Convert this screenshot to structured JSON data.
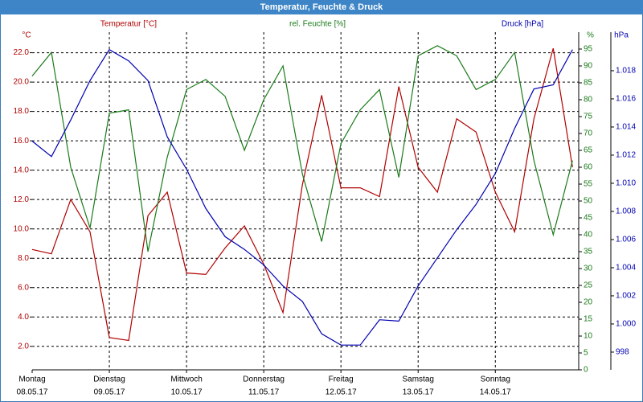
{
  "chart_data": {
    "type": "line",
    "title": "Temperatur, Feuchte & Druck",
    "categories": [
      "Montag",
      "Dienstag",
      "Mittwoch",
      "Donnerstag",
      "Freitag",
      "Samstag",
      "Sonntag"
    ],
    "dates": [
      "08.05.17",
      "09.05.17",
      "10.05.17",
      "11.05.17",
      "12.05.17",
      "13.05.17",
      "14.05.17"
    ],
    "x": [
      0,
      0.25,
      0.5,
      0.75,
      1,
      1.25,
      1.5,
      1.75,
      2,
      2.25,
      2.5,
      2.75,
      3,
      3.25,
      3.5,
      3.75,
      4,
      4.25,
      4.5,
      4.75,
      5,
      5.25,
      5.5,
      5.75,
      6,
      6.25,
      6.5,
      6.75,
      7
    ],
    "xlim": [
      0,
      7.08
    ],
    "ylabel": "°C",
    "y2label": "%",
    "y3label": "hPa",
    "ylim": [
      0.4,
      23.4
    ],
    "yticks": [
      {
        "value": 2,
        "label": "2.0"
      },
      {
        "value": 4,
        "label": "4.0"
      },
      {
        "value": 6,
        "label": "6.0"
      },
      {
        "value": 8,
        "label": "8.0"
      },
      {
        "value": 10,
        "label": "10.0"
      },
      {
        "value": 12,
        "label": "12.0"
      },
      {
        "value": 14,
        "label": "14.0"
      },
      {
        "value": 16,
        "label": "16.0"
      },
      {
        "value": 18,
        "label": "18.0"
      },
      {
        "value": 20,
        "label": "20.0"
      },
      {
        "value": 22,
        "label": "22.0"
      }
    ],
    "y2lim": [
      0,
      100
    ],
    "y2ticks": [
      0,
      5,
      10,
      15,
      20,
      25,
      30,
      35,
      40,
      45,
      50,
      55,
      60,
      65,
      70,
      75,
      80,
      85,
      90,
      95
    ],
    "y3lim": [
      996.74,
      1020.74
    ],
    "y3ticks": [
      998,
      {
        "value": 1000,
        "label": "1.000"
      },
      {
        "value": 1002,
        "label": "1.002"
      },
      {
        "value": 1004,
        "label": "1.004"
      },
      {
        "value": 1006,
        "label": "1.006"
      },
      {
        "value": 1008,
        "label": "1.008"
      },
      {
        "value": 1010,
        "label": "1.010"
      },
      {
        "value": 1012,
        "label": "1.012"
      },
      {
        "value": 1014,
        "label": "1.014"
      },
      {
        "value": 1016,
        "label": "1.016"
      },
      {
        "value": 1018,
        "label": "1.018"
      }
    ],
    "grid": true,
    "series": [
      {
        "name": "Temperatur [°C]",
        "color": "#b00000",
        "axis": "y",
        "values": [
          8.6,
          8.3,
          12.0,
          9.8,
          2.6,
          2.4,
          10.9,
          12.5,
          7.0,
          6.9,
          8.7,
          10.2,
          7.6,
          4.3,
          13.0,
          19.1,
          12.8,
          12.8,
          12.2,
          19.7,
          14.2,
          12.5,
          17.5,
          16.6,
          12.5,
          9.8,
          17.5,
          22.3,
          14.2
        ]
      },
      {
        "name": "rel. Feuchte [%]",
        "color": "#1a7a1a",
        "axis": "y2",
        "values": [
          87,
          94,
          60,
          42,
          76,
          77,
          35,
          63,
          83,
          86,
          81,
          65,
          80,
          90,
          58,
          38,
          67,
          77,
          83,
          57,
          93,
          96,
          93,
          83,
          86,
          94,
          62,
          40,
          62
        ]
      },
      {
        "name": "Druck [hPa]",
        "color": "#0000b0",
        "axis": "y3",
        "values": [
          1013.0,
          1011.9,
          1014.5,
          1017.3,
          1019.5,
          1018.7,
          1017.3,
          1013.3,
          1011.0,
          1008.2,
          1006.2,
          1005.3,
          1004.2,
          1002.7,
          1001.6,
          999.3,
          998.5,
          998.5,
          1000.3,
          1000.2,
          1002.7,
          1004.7,
          1006.7,
          1008.5,
          1010.7,
          1013.9,
          1016.7,
          1017.0,
          1019.5
        ]
      }
    ]
  }
}
